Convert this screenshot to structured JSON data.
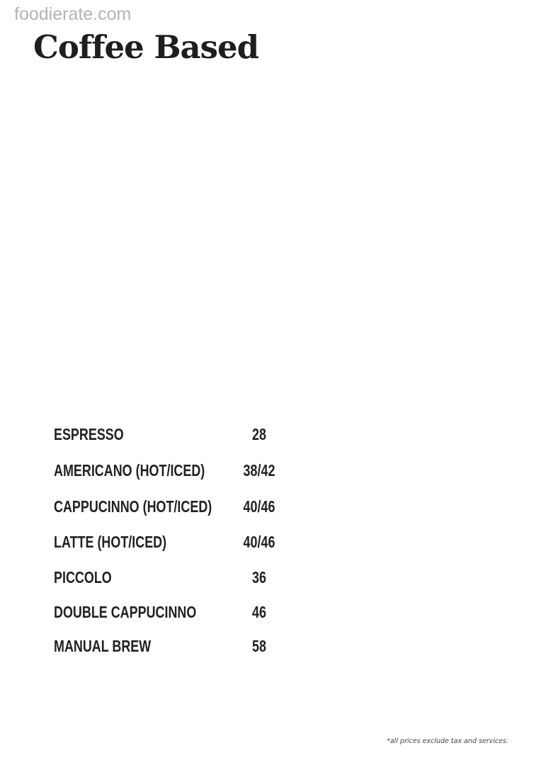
{
  "watermark": "foodierate.com",
  "title": "Coffee Based",
  "items": [
    {
      "name": "ESPRESSO",
      "price": "28"
    },
    {
      "name": "AMERICANO (HOT/ICED)",
      "price": "38/42"
    },
    {
      "name": "CAPPUCINNO (HOT/ICED)",
      "price": "40/46"
    },
    {
      "name": "LATTE (HOT/ICED)",
      "price": "40/46"
    },
    {
      "name": "PICCOLO",
      "price": "36"
    },
    {
      "name": "DOUBLE CAPPUCINNO",
      "price": "46"
    },
    {
      "name": "MANUAL BREW",
      "price": "58"
    }
  ],
  "note": "*all prices exclude tax and services."
}
